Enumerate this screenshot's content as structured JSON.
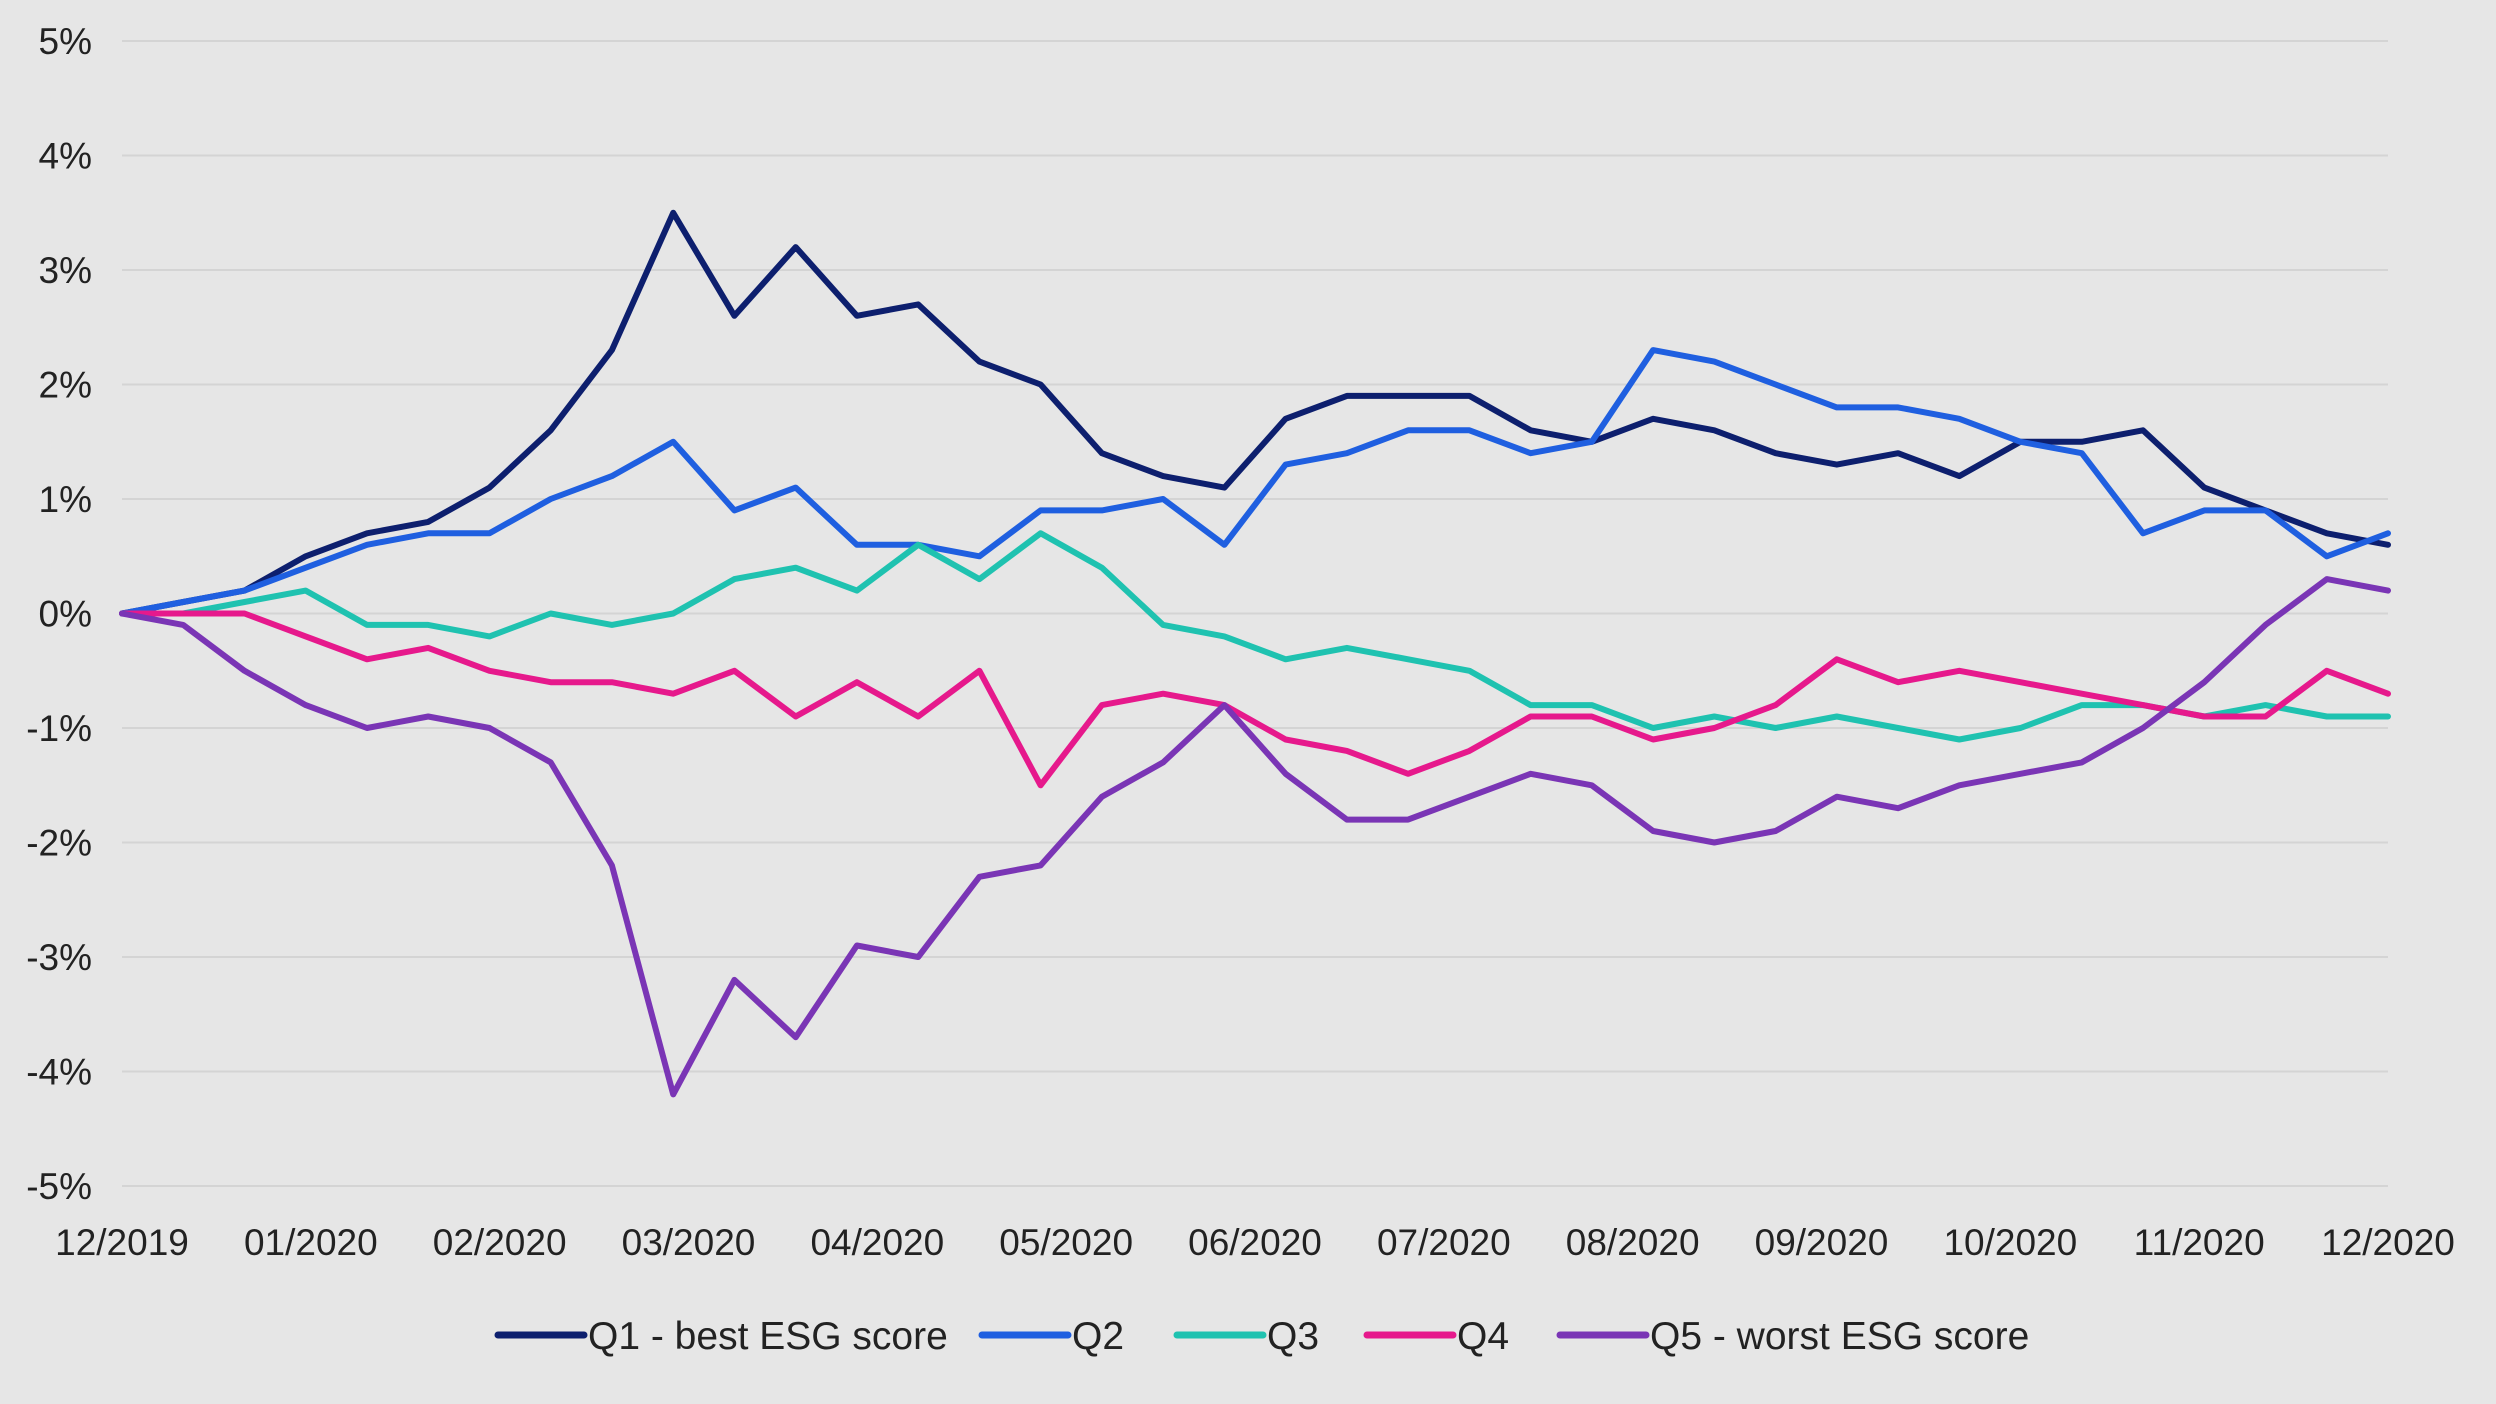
{
  "chart_data": {
    "type": "line",
    "title": "",
    "xlabel": "",
    "ylabel": "",
    "ylim": [
      -5,
      5
    ],
    "y_ticks": [
      {
        "value": 5,
        "label": "5%"
      },
      {
        "value": 4,
        "label": "4%"
      },
      {
        "value": 3,
        "label": "3%"
      },
      {
        "value": 2,
        "label": "2%"
      },
      {
        "value": 1,
        "label": "1%"
      },
      {
        "value": 0,
        "label": "0%"
      },
      {
        "value": -1,
        "label": "-1%"
      },
      {
        "value": -2,
        "label": "-2%"
      },
      {
        "value": -3,
        "label": "-3%"
      },
      {
        "value": -4,
        "label": "-4%"
      },
      {
        "value": -5,
        "label": "-5%"
      }
    ],
    "x_ticks": [
      "12/2019",
      "01/2020",
      "02/2020",
      "03/2020",
      "04/2020",
      "05/2020",
      "06/2020",
      "07/2020",
      "08/2020",
      "09/2020",
      "10/2020",
      "11/2020",
      "12/2020"
    ],
    "grid": true,
    "legend_position": "bottom",
    "x": [
      "12/2019",
      "12/2019",
      "12/2019",
      "01/2020",
      "01/2020",
      "02/2020",
      "02/2020",
      "02/2020",
      "02/2020",
      "02/2020",
      "03/2020",
      "03/2020",
      "03/2020",
      "04/2020",
      "04/2020",
      "04/2020",
      "05/2020",
      "05/2020",
      "05/2020",
      "06/2020",
      "06/2020",
      "06/2020",
      "07/2020",
      "07/2020",
      "07/2020",
      "08/2020",
      "08/2020",
      "08/2020",
      "09/2020",
      "09/2020",
      "09/2020",
      "10/2020",
      "10/2020",
      "10/2020",
      "11/2020",
      "11/2020",
      "11/2020",
      "12/2020"
    ],
    "series": [
      {
        "name": "Q1 - best ESG score",
        "color": "#0d1f6e",
        "values": [
          0.0,
          0.1,
          0.2,
          0.5,
          0.7,
          0.8,
          1.1,
          1.6,
          2.3,
          3.5,
          2.6,
          3.2,
          2.6,
          2.7,
          2.2,
          2.0,
          1.4,
          1.2,
          1.1,
          1.7,
          1.9,
          1.9,
          1.9,
          1.6,
          1.5,
          1.7,
          1.6,
          1.4,
          1.3,
          1.4,
          1.2,
          1.5,
          1.5,
          1.6,
          1.1,
          0.9,
          0.7,
          0.6
        ]
      },
      {
        "name": "Q2",
        "color": "#1f5fe0",
        "values": [
          0.0,
          0.1,
          0.2,
          0.4,
          0.6,
          0.7,
          0.7,
          1.0,
          1.2,
          1.5,
          0.9,
          1.1,
          0.6,
          0.6,
          0.5,
          0.9,
          0.9,
          1.0,
          0.6,
          1.3,
          1.4,
          1.6,
          1.6,
          1.4,
          1.5,
          2.3,
          2.2,
          2.0,
          1.8,
          1.8,
          1.7,
          1.5,
          1.4,
          0.7,
          0.9,
          0.9,
          0.5,
          0.7
        ]
      },
      {
        "name": "Q3",
        "color": "#1fc2b0",
        "values": [
          0.0,
          0.0,
          0.1,
          0.2,
          -0.1,
          -0.1,
          -0.2,
          0.0,
          -0.1,
          0.0,
          0.3,
          0.4,
          0.2,
          0.6,
          0.3,
          0.7,
          0.4,
          -0.1,
          -0.2,
          -0.4,
          -0.3,
          -0.4,
          -0.5,
          -0.8,
          -0.8,
          -1.0,
          -0.9,
          -1.0,
          -0.9,
          -1.0,
          -1.1,
          -1.0,
          -0.8,
          -0.8,
          -0.9,
          -0.8,
          -0.9,
          -0.9
        ]
      },
      {
        "name": "Q4",
        "color": "#e6198c",
        "values": [
          0.0,
          0.0,
          0.0,
          -0.2,
          -0.4,
          -0.3,
          -0.5,
          -0.6,
          -0.6,
          -0.7,
          -0.5,
          -0.9,
          -0.6,
          -0.9,
          -0.5,
          -1.5,
          -0.8,
          -0.7,
          -0.8,
          -1.1,
          -1.2,
          -1.4,
          -1.2,
          -0.9,
          -0.9,
          -1.1,
          -1.0,
          -0.8,
          -0.4,
          -0.6,
          -0.5,
          -0.6,
          -0.7,
          -0.8,
          -0.9,
          -0.9,
          -0.5,
          -0.7
        ]
      },
      {
        "name": "Q5 - worst ESG score",
        "color": "#7a35b5",
        "values": [
          0.0,
          -0.1,
          -0.5,
          -0.8,
          -1.0,
          -0.9,
          -1.0,
          -1.3,
          -2.2,
          -4.2,
          -3.2,
          -3.7,
          -2.9,
          -3.0,
          -2.3,
          -2.2,
          -1.6,
          -1.3,
          -0.8,
          -1.4,
          -1.8,
          -1.8,
          -1.6,
          -1.4,
          -1.5,
          -1.9,
          -2.0,
          -1.9,
          -1.6,
          -1.7,
          -1.5,
          -1.4,
          -1.3,
          -1.0,
          -0.6,
          -0.1,
          0.3,
          0.2
        ]
      }
    ]
  }
}
